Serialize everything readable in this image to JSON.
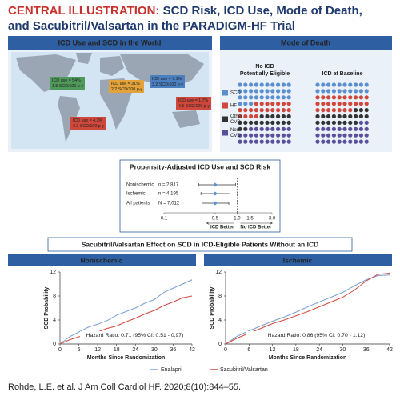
{
  "header": {
    "label": "CENTRAL ILLUSTRATION:",
    "title": "SCD Risk, ICD Use, Mode of Death, and Sacubitril/Valsartan in the PARADIGM-HF Trial"
  },
  "world": {
    "title": "ICD Use and SCD in the World",
    "callouts": [
      {
        "lines": [
          "ICD use = 54%",
          "1.5 SCD/100 p-y"
        ],
        "color": "#4f9a5a"
      },
      {
        "lines": [
          "ICD use = 31%",
          "2.2 SCD/100 p-y"
        ],
        "color": "#e3a33a"
      },
      {
        "lines": [
          "ICD use = 7.1%",
          "3.2 SCD/100 p-y"
        ],
        "color": "#4a7fc0"
      },
      {
        "lines": [
          "ICD use = 1.7%",
          "4.5 SCD/100 p-y"
        ],
        "color": "#d0483c"
      },
      {
        "lines": [
          "ICD use = 4.3%",
          "3.3 SCD/100 p-y"
        ],
        "color": "#d0483c"
      }
    ]
  },
  "mode_of_death": {
    "title": "Mode of Death",
    "columns": [
      {
        "lines": [
          "No ICD",
          "Potentially Eligible"
        ],
        "counts": [
          33,
          21,
          18,
          28
        ]
      },
      {
        "lines": [
          "ICD at Baseline"
        ],
        "counts": [
          20,
          27,
          21,
          32
        ]
      }
    ],
    "legend": [
      {
        "lines": [
          "SCD"
        ],
        "color": "#5b8fd0"
      },
      {
        "lines": [
          "HF"
        ],
        "color": "#d0483c"
      },
      {
        "lines": [
          "Other",
          "CVD"
        ],
        "color": "#333333"
      },
      {
        "lines": [
          "Non",
          "CVD"
        ],
        "color": "#5a4f9a"
      }
    ]
  },
  "forest": {
    "title": "Propensity-Adjusted ICD Use and SCD Risk",
    "rows": [
      {
        "label": "Nonischemic",
        "n": "n = 2,817",
        "hr": 0.5,
        "ci": [
          0.3,
          0.95
        ]
      },
      {
        "label": "Ischemic",
        "n": "n = 4,195",
        "hr": 0.5,
        "ci": [
          0.32,
          0.8
        ]
      },
      {
        "label": "All patients",
        "n": "N = 7,012",
        "hr": 0.5,
        "ci": [
          0.33,
          0.77
        ]
      }
    ],
    "xlim": [
      0.1,
      3
    ],
    "log": true,
    "xticks": [
      0.1,
      0.5,
      {
        "value": 1,
        "label": "1.0"
      },
      1.5,
      {
        "value": 3,
        "label": "3.0"
      }
    ],
    "left_label": "ICD Better",
    "right_label": "No ICD Better"
  },
  "km": {
    "title": "Sacubitril/Valsartan Effect on SCD in ICD-Eligible Patients Without an ICD",
    "chart_data": [
      {
        "type": "line",
        "title": "Nonischemic",
        "xlabel": "Months Since Randomization",
        "ylabel": "SCD Probability",
        "annotation": "Hazard Ratio: 0.71 (95% CI: 0.51 - 0.97)",
        "x": [
          0,
          3,
          6,
          9,
          12,
          15,
          18,
          21,
          24,
          27,
          30,
          33,
          36,
          39,
          42
        ],
        "series": [
          {
            "name": "Enalapril",
            "color": "#7a9fd0",
            "values": [
              0,
              1.2,
              2.0,
              2.8,
              3.3,
              3.9,
              4.8,
              5.4,
              6.0,
              6.8,
              7.4,
              8.6,
              9.3,
              10.0,
              10.7
            ]
          },
          {
            "name": "Sacubitril/Valsartan",
            "color": "#d0483c",
            "values": [
              0,
              0.7,
              1.2,
              1.6,
              2.0,
              2.6,
              3.0,
              3.7,
              4.3,
              5.0,
              5.6,
              6.4,
              7.0,
              7.7,
              8.0
            ]
          }
        ],
        "xlim": [
          0,
          42
        ],
        "xticks": [
          0,
          6,
          12,
          18,
          24,
          30,
          36,
          42
        ],
        "ylim": [
          0,
          12
        ],
        "yticks": [
          0,
          4,
          8,
          12
        ]
      },
      {
        "type": "line",
        "title": "Ischemic",
        "xlabel": "Months Since Randomization",
        "ylabel": "SCD Probability",
        "annotation": "Hazard Ratio: 0.86 (95% CI: 0.70 - 1.12)",
        "x": [
          0,
          3,
          6,
          9,
          12,
          15,
          18,
          21,
          24,
          27,
          30,
          33,
          36,
          39,
          42
        ],
        "series": [
          {
            "name": "Enalapril",
            "color": "#7a9fd0",
            "values": [
              0,
              1.3,
              2.2,
              3.0,
              3.8,
              4.5,
              5.3,
              6.2,
              7.0,
              7.8,
              8.6,
              9.7,
              10.7,
              11.4,
              11.5
            ]
          },
          {
            "name": "Sacubitril/Valsartan",
            "color": "#d0483c",
            "values": [
              0,
              1.0,
              1.8,
              2.6,
              3.4,
              4.0,
              4.7,
              5.4,
              6.2,
              7.0,
              7.8,
              9.0,
              10.5,
              11.6,
              11.8
            ]
          }
        ],
        "xlim": [
          0,
          42
        ],
        "xticks": [
          0,
          6,
          12,
          18,
          24,
          30,
          36,
          42
        ],
        "ylim": [
          0,
          12
        ],
        "yticks": [
          0,
          4,
          8,
          12
        ]
      }
    ]
  },
  "citation": "Rohde, L.E. et al. J Am Coll Cardiol HF. 2020;8(10):844–55."
}
